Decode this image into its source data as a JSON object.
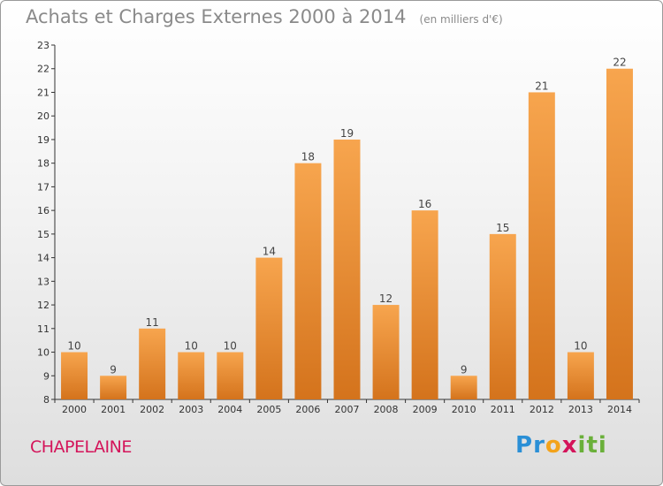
{
  "title": "Achats et Charges Externes 2000 à 2014",
  "unit": "(en milliers d'€)",
  "commune": "CHAPELAINE",
  "logo": {
    "letters": [
      {
        "ch": "P",
        "color": "#2a8fd6"
      },
      {
        "ch": "r",
        "color": "#2a8fd6"
      },
      {
        "ch": "o",
        "color": "#f3a31b"
      },
      {
        "ch": "x",
        "color": "#d4145a"
      },
      {
        "ch": "i",
        "color": "#6ab03a"
      },
      {
        "ch": "t",
        "color": "#6ab03a"
      },
      {
        "ch": "i",
        "color": "#6ab03a"
      }
    ]
  },
  "colors": {
    "bar_top": "#f7a54e",
    "bar_bottom": "#d4731c",
    "commune": "#d4145a"
  },
  "chart_data": {
    "type": "bar",
    "title": "Achats et Charges Externes 2000 à 2014",
    "unit": "(en milliers d'€)",
    "categories": [
      "2000",
      "2001",
      "2002",
      "2003",
      "2004",
      "2005",
      "2006",
      "2007",
      "2008",
      "2009",
      "2010",
      "2011",
      "2012",
      "2013",
      "2014"
    ],
    "values": [
      10,
      9,
      11,
      10,
      10,
      14,
      18,
      19,
      12,
      16,
      9,
      15,
      21,
      10,
      22
    ],
    "ylim": [
      8,
      23
    ],
    "yticks": [
      8,
      9,
      10,
      11,
      12,
      13,
      14,
      15,
      16,
      17,
      18,
      19,
      20,
      21,
      22,
      23
    ],
    "grid": false,
    "data_labels": true
  }
}
